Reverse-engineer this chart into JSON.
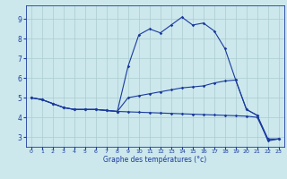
{
  "xlabel": "Graphe des températures (°c)",
  "bg_color": "#cce8ec",
  "grid_color": "#aaccd0",
  "line_color": "#1a3a9e",
  "xlim": [
    -0.5,
    23.5
  ],
  "ylim": [
    2.5,
    9.7
  ],
  "xticks": [
    0,
    1,
    2,
    3,
    4,
    5,
    6,
    7,
    8,
    9,
    10,
    11,
    12,
    13,
    14,
    15,
    16,
    17,
    18,
    19,
    20,
    21,
    22,
    23
  ],
  "yticks": [
    3,
    4,
    5,
    6,
    7,
    8,
    9
  ],
  "line1_x": [
    0,
    1,
    2,
    3,
    4,
    5,
    6,
    7,
    8,
    9,
    10,
    11,
    12,
    13,
    14,
    15,
    16,
    17,
    18,
    19,
    20,
    21,
    22,
    23
  ],
  "line1_y": [
    5.0,
    4.9,
    4.7,
    4.5,
    4.4,
    4.4,
    4.4,
    4.35,
    4.3,
    6.6,
    8.2,
    8.5,
    8.3,
    8.7,
    9.1,
    8.7,
    8.8,
    8.4,
    7.5,
    5.9,
    4.4,
    4.1,
    2.8,
    2.9
  ],
  "line2_x": [
    0,
    1,
    2,
    3,
    4,
    5,
    6,
    7,
    8,
    9,
    10,
    11,
    12,
    13,
    14,
    15,
    16,
    17,
    18,
    19,
    20,
    21,
    22,
    23
  ],
  "line2_y": [
    5.0,
    4.9,
    4.7,
    4.5,
    4.4,
    4.4,
    4.4,
    4.35,
    4.3,
    5.0,
    5.1,
    5.2,
    5.3,
    5.4,
    5.5,
    5.55,
    5.6,
    5.75,
    5.85,
    5.9,
    4.4,
    4.1,
    2.9,
    2.9
  ],
  "line3_x": [
    0,
    1,
    2,
    3,
    4,
    5,
    6,
    7,
    8,
    9,
    10,
    11,
    12,
    13,
    14,
    15,
    16,
    17,
    18,
    19,
    20,
    21,
    22,
    23
  ],
  "line3_y": [
    5.0,
    4.9,
    4.7,
    4.5,
    4.4,
    4.4,
    4.4,
    4.35,
    4.3,
    4.28,
    4.26,
    4.24,
    4.22,
    4.2,
    4.18,
    4.16,
    4.14,
    4.12,
    4.1,
    4.08,
    4.06,
    4.0,
    2.85,
    2.9
  ]
}
